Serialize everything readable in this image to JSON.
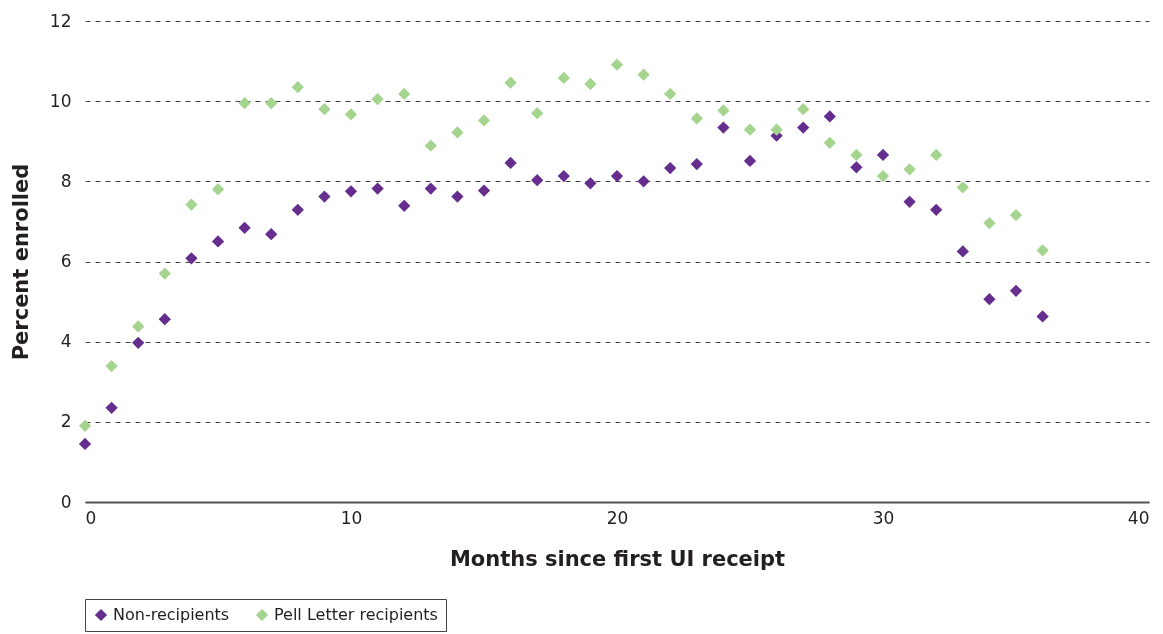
{
  "chart_data": {
    "type": "scatter",
    "xlabel": "Months since first UI receipt",
    "ylabel": "Percent enrolled",
    "x": [
      0,
      1,
      2,
      3,
      4,
      5,
      6,
      7,
      8,
      9,
      10,
      11,
      12,
      13,
      14,
      15,
      16,
      17,
      18,
      19,
      20,
      21,
      22,
      23,
      24,
      25,
      26,
      27,
      28,
      29,
      30,
      31,
      32,
      33,
      34,
      35,
      36
    ],
    "series": [
      {
        "name": "Non-recipients",
        "color": "#652d8e",
        "values": [
          1.45,
          2.35,
          3.97,
          4.56,
          6.08,
          6.5,
          6.84,
          6.68,
          7.29,
          7.62,
          7.75,
          7.82,
          7.39,
          7.82,
          7.62,
          7.77,
          8.46,
          8.03,
          8.13,
          7.95,
          8.13,
          8.0,
          8.33,
          8.43,
          9.34,
          8.51,
          9.14,
          9.34,
          9.62,
          8.35,
          8.66,
          7.49,
          7.29,
          6.25,
          5.06,
          5.27,
          4.63
        ]
      },
      {
        "name": "Pell Letter recipients",
        "color": "#a5d48f",
        "values": [
          1.9,
          3.39,
          4.38,
          5.7,
          7.42,
          7.8,
          9.95,
          9.95,
          10.35,
          9.8,
          9.67,
          10.05,
          10.18,
          8.89,
          9.22,
          9.52,
          10.46,
          9.7,
          10.58,
          10.43,
          10.91,
          10.66,
          10.18,
          9.57,
          9.77,
          9.29,
          9.29,
          9.8,
          8.96,
          8.66,
          8.13,
          8.3,
          8.66,
          7.85,
          6.96,
          7.16,
          6.28
        ]
      }
    ],
    "xlim": [
      0,
      40
    ],
    "xticks": [
      0,
      10,
      20,
      30,
      40
    ],
    "ylim": [
      0,
      12
    ],
    "yticks": [
      0,
      2,
      4,
      6,
      8,
      10,
      12
    ],
    "grid": "y",
    "legend": "bottom",
    "marker": "diamond"
  }
}
